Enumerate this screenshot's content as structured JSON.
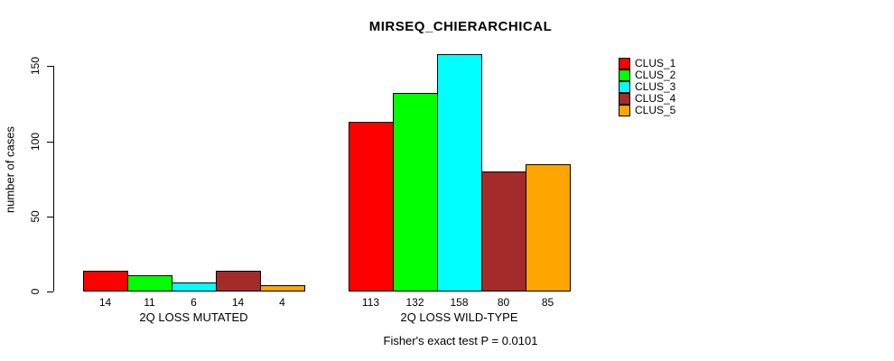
{
  "chart_data": {
    "type": "bar",
    "title": "MIRSEQ_CHIERARCHICAL",
    "ylabel": "number of cases",
    "xlabel": "",
    "categories": [
      "2Q LOSS MUTATED",
      "2Q LOSS WILD-TYPE"
    ],
    "series": [
      {
        "name": "CLUS_1",
        "color": "#FF0000",
        "values": [
          14,
          113
        ]
      },
      {
        "name": "CLUS_2",
        "color": "#00FF00",
        "values": [
          11,
          132
        ]
      },
      {
        "name": "CLUS_3",
        "color": "#00FFFF",
        "values": [
          6,
          158
        ]
      },
      {
        "name": "CLUS_4",
        "color": "#A52A2A",
        "values": [
          14,
          80
        ]
      },
      {
        "name": "CLUS_5",
        "color": "#FFA500",
        "values": [
          4,
          85
        ]
      }
    ],
    "yticks": [
      0,
      50,
      100,
      150
    ],
    "ylim": [
      0,
      160
    ],
    "bar_value_labels_shown": true,
    "grid": false,
    "legend_position": "right",
    "annotation": "Fisher's exact test P = 0.0101",
    "bar_border_color": "#000000",
    "axis_color": "#000000",
    "background_color": "#FFFFFF"
  }
}
